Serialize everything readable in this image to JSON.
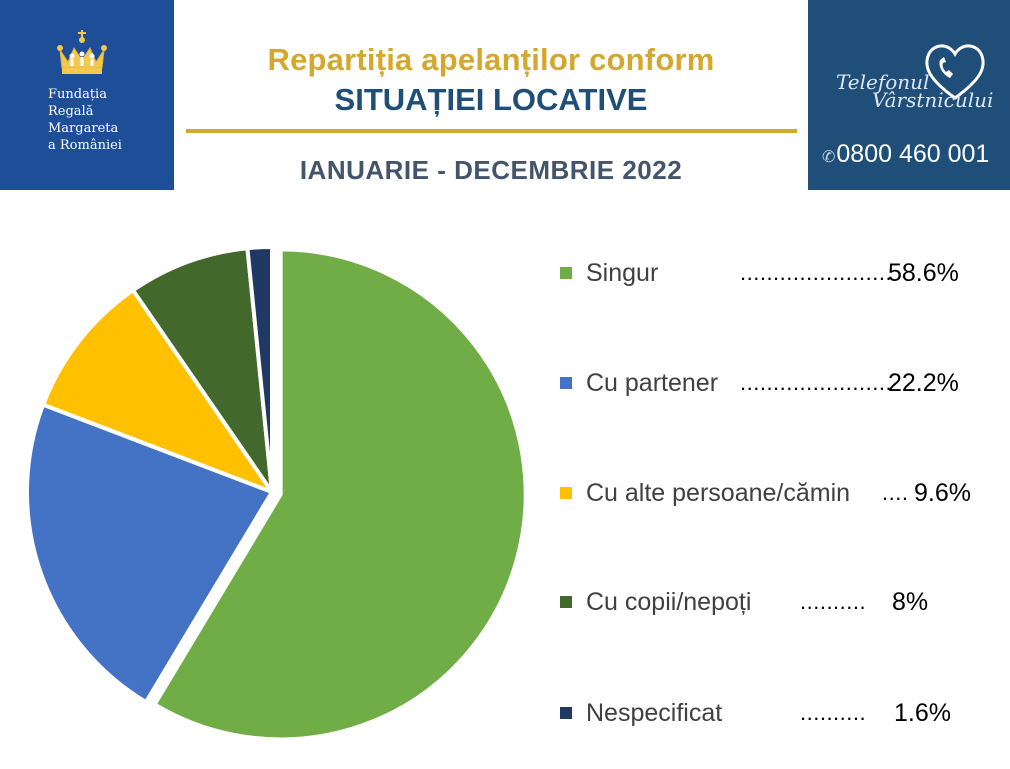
{
  "foundation": {
    "lines": [
      "Fundația",
      "Regală",
      "Margareta",
      "a României"
    ]
  },
  "header": {
    "title_line1": "Repartiția apelanților conform",
    "title_line2": "SITUAȚIEI LOCATIVE",
    "period": "IANUARIE - DECEMBRIE 2022"
  },
  "helpline": {
    "name_line1": "Telefonul",
    "name_line2": "Vârstnicului",
    "phone": "0800 460 001",
    "phone_icon": "phone-icon"
  },
  "colors": {
    "brand_blue": "#1f4e79",
    "gold": "#d4a82f",
    "foundation_blue": "#1f4e99"
  },
  "chart_data": {
    "type": "pie",
    "title": "",
    "start_angle_deg": 0,
    "direction": "clockwise",
    "exploded": true,
    "series": [
      {
        "label": "Singur",
        "value": 58.6,
        "display": "58.6%",
        "color": "#70ad47",
        "dots": "......................."
      },
      {
        "label": "Cu partener",
        "value": 22.2,
        "display": "22.2%",
        "color": "#4472c4",
        "dots": "......................."
      },
      {
        "label": "Cu alte persoane/cămin",
        "value": 9.6,
        "display": "9.6%",
        "color": "#ffc000",
        "dots": "...."
      },
      {
        "label": "Cu copii/nepoți",
        "value": 8,
        "display": "8%",
        "color": "#43682b",
        "dots": ".........."
      },
      {
        "label": "Nespecificat",
        "value": 1.6,
        "display": "1.6%",
        "color": "#203864",
        "dots": ".........."
      }
    ],
    "legend": {
      "position": "right"
    }
  }
}
